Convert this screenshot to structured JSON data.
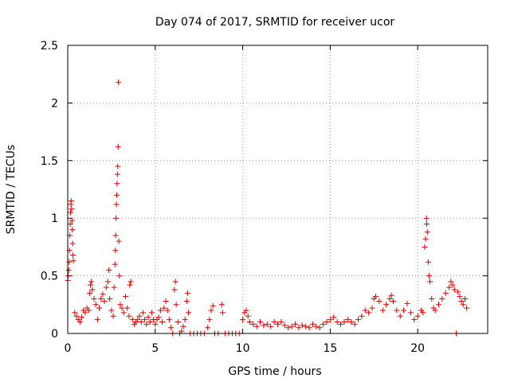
{
  "chart_data": {
    "type": "scatter",
    "title": "Day 074 of 2017, SRMTID for receiver ucor",
    "xlabel": "GPS time / hours",
    "ylabel": "SRMTID / TECUs",
    "xlim": [
      0,
      24
    ],
    "ylim": [
      0,
      2.5
    ],
    "xticks": [
      0,
      5,
      10,
      15,
      20
    ],
    "xtick_labels": [
      "0",
      "5",
      "10",
      "15",
      "20"
    ],
    "yticks": [
      0,
      0.5,
      1,
      1.5,
      2,
      2.5
    ],
    "ytick_labels": [
      "0",
      "0.5",
      "1",
      "1.5",
      "2",
      "2.5"
    ],
    "grid": true,
    "marker": "+",
    "color": "#e00000",
    "series": [
      {
        "name": "SRMTID",
        "points": [
          [
            0.0,
            0.46
          ],
          [
            0.03,
            0.5
          ],
          [
            0.05,
            0.55
          ],
          [
            0.08,
            0.62
          ],
          [
            0.1,
            0.72
          ],
          [
            0.12,
            0.85
          ],
          [
            0.14,
            0.95
          ],
          [
            0.16,
            1.05
          ],
          [
            0.18,
            1.12
          ],
          [
            0.2,
            1.15
          ],
          [
            0.22,
            1.08
          ],
          [
            0.24,
            0.98
          ],
          [
            0.26,
            0.9
          ],
          [
            0.28,
            0.78
          ],
          [
            0.3,
            0.68
          ],
          [
            0.32,
            0.63
          ],
          [
            0.4,
            0.18
          ],
          [
            0.5,
            0.15
          ],
          [
            0.6,
            0.12
          ],
          [
            0.7,
            0.1
          ],
          [
            0.8,
            0.14
          ],
          [
            0.9,
            0.2
          ],
          [
            1.0,
            0.18
          ],
          [
            1.1,
            0.22
          ],
          [
            1.2,
            0.2
          ],
          [
            1.25,
            0.35
          ],
          [
            1.3,
            0.42
          ],
          [
            1.35,
            0.45
          ],
          [
            1.4,
            0.38
          ],
          [
            1.5,
            0.3
          ],
          [
            1.6,
            0.25
          ],
          [
            1.7,
            0.12
          ],
          [
            1.8,
            0.22
          ],
          [
            1.9,
            0.3
          ],
          [
            2.0,
            0.34
          ],
          [
            2.1,
            0.28
          ],
          [
            2.2,
            0.4
          ],
          [
            2.3,
            0.45
          ],
          [
            2.35,
            0.55
          ],
          [
            2.4,
            0.3
          ],
          [
            2.5,
            0.2
          ],
          [
            2.6,
            0.15
          ],
          [
            2.65,
            0.4
          ],
          [
            2.7,
            0.6
          ],
          [
            2.72,
            0.72
          ],
          [
            2.74,
            0.85
          ],
          [
            2.76,
            1.0
          ],
          [
            2.78,
            1.12
          ],
          [
            2.8,
            1.2
          ],
          [
            2.82,
            1.3
          ],
          [
            2.84,
            1.38
          ],
          [
            2.86,
            1.45
          ],
          [
            2.88,
            1.62
          ],
          [
            2.9,
            2.18
          ],
          [
            2.92,
            0.8
          ],
          [
            2.95,
            0.5
          ],
          [
            3.0,
            0.25
          ],
          [
            3.1,
            0.22
          ],
          [
            3.2,
            0.18
          ],
          [
            3.3,
            0.32
          ],
          [
            3.4,
            0.22
          ],
          [
            3.5,
            0.15
          ],
          [
            3.55,
            0.42
          ],
          [
            3.6,
            0.45
          ],
          [
            3.7,
            0.12
          ],
          [
            3.8,
            0.08
          ],
          [
            3.9,
            0.1
          ],
          [
            4.0,
            0.12
          ],
          [
            4.1,
            0.15
          ],
          [
            4.2,
            0.1
          ],
          [
            4.3,
            0.18
          ],
          [
            4.4,
            0.12
          ],
          [
            4.5,
            0.08
          ],
          [
            4.6,
            0.14
          ],
          [
            4.7,
            0.1
          ],
          [
            4.8,
            0.18
          ],
          [
            4.9,
            0.12
          ],
          [
            5.0,
            0.08
          ],
          [
            5.1,
            0.12
          ],
          [
            5.2,
            0.14
          ],
          [
            5.3,
            0.2
          ],
          [
            5.4,
            0.1
          ],
          [
            5.5,
            0.22
          ],
          [
            5.6,
            0.28
          ],
          [
            5.7,
            0.2
          ],
          [
            5.8,
            0.12
          ],
          [
            5.9,
            0.05
          ],
          [
            6.0,
            0.0
          ],
          [
            6.1,
            0.38
          ],
          [
            6.15,
            0.45
          ],
          [
            6.2,
            0.25
          ],
          [
            6.3,
            0.1
          ],
          [
            6.4,
            0.0
          ],
          [
            6.5,
            0.02
          ],
          [
            6.6,
            0.06
          ],
          [
            6.7,
            0.12
          ],
          [
            6.8,
            0.28
          ],
          [
            6.85,
            0.35
          ],
          [
            6.9,
            0.18
          ],
          [
            7.0,
            0.0
          ],
          [
            7.2,
            0.0
          ],
          [
            7.4,
            0.0
          ],
          [
            7.6,
            0.0
          ],
          [
            7.8,
            0.0
          ],
          [
            8.0,
            0.05
          ],
          [
            8.1,
            0.12
          ],
          [
            8.2,
            0.2
          ],
          [
            8.3,
            0.24
          ],
          [
            8.4,
            0.0
          ],
          [
            8.6,
            0.0
          ],
          [
            8.8,
            0.25
          ],
          [
            8.85,
            0.18
          ],
          [
            9.0,
            0.0
          ],
          [
            9.2,
            0.0
          ],
          [
            9.4,
            0.0
          ],
          [
            9.6,
            0.0
          ],
          [
            9.8,
            0.0
          ],
          [
            10.0,
            0.12
          ],
          [
            10.1,
            0.18
          ],
          [
            10.2,
            0.2
          ],
          [
            10.3,
            0.15
          ],
          [
            10.4,
            0.1
          ],
          [
            10.6,
            0.08
          ],
          [
            10.8,
            0.06
          ],
          [
            11.0,
            0.1
          ],
          [
            11.2,
            0.07
          ],
          [
            11.4,
            0.08
          ],
          [
            11.6,
            0.06
          ],
          [
            11.8,
            0.1
          ],
          [
            12.0,
            0.08
          ],
          [
            12.2,
            0.1
          ],
          [
            12.4,
            0.07
          ],
          [
            12.6,
            0.05
          ],
          [
            12.8,
            0.06
          ],
          [
            13.0,
            0.08
          ],
          [
            13.2,
            0.05
          ],
          [
            13.4,
            0.07
          ],
          [
            13.6,
            0.06
          ],
          [
            13.8,
            0.05
          ],
          [
            14.0,
            0.08
          ],
          [
            14.2,
            0.06
          ],
          [
            14.4,
            0.05
          ],
          [
            14.6,
            0.08
          ],
          [
            14.8,
            0.1
          ],
          [
            15.0,
            0.12
          ],
          [
            15.2,
            0.14
          ],
          [
            15.4,
            0.1
          ],
          [
            15.6,
            0.08
          ],
          [
            15.8,
            0.1
          ],
          [
            16.0,
            0.12
          ],
          [
            16.2,
            0.1
          ],
          [
            16.4,
            0.08
          ],
          [
            16.6,
            0.12
          ],
          [
            16.8,
            0.15
          ],
          [
            17.0,
            0.2
          ],
          [
            17.2,
            0.18
          ],
          [
            17.4,
            0.22
          ],
          [
            17.5,
            0.3
          ],
          [
            17.6,
            0.32
          ],
          [
            17.8,
            0.28
          ],
          [
            18.0,
            0.2
          ],
          [
            18.2,
            0.25
          ],
          [
            18.4,
            0.3
          ],
          [
            18.5,
            0.33
          ],
          [
            18.6,
            0.28
          ],
          [
            18.8,
            0.2
          ],
          [
            19.0,
            0.15
          ],
          [
            19.2,
            0.2
          ],
          [
            19.4,
            0.26
          ],
          [
            19.6,
            0.18
          ],
          [
            19.8,
            0.12
          ],
          [
            20.0,
            0.15
          ],
          [
            20.2,
            0.2
          ],
          [
            20.3,
            0.18
          ],
          [
            20.4,
            0.75
          ],
          [
            20.45,
            0.82
          ],
          [
            20.5,
            1.0
          ],
          [
            20.52,
            0.95
          ],
          [
            20.55,
            0.88
          ],
          [
            20.6,
            0.62
          ],
          [
            20.65,
            0.5
          ],
          [
            20.7,
            0.45
          ],
          [
            20.8,
            0.3
          ],
          [
            20.9,
            0.22
          ],
          [
            21.0,
            0.2
          ],
          [
            21.2,
            0.25
          ],
          [
            21.4,
            0.3
          ],
          [
            21.6,
            0.35
          ],
          [
            21.8,
            0.4
          ],
          [
            21.9,
            0.45
          ],
          [
            22.0,
            0.42
          ],
          [
            22.1,
            0.38
          ],
          [
            22.2,
            0.0
          ],
          [
            22.3,
            0.36
          ],
          [
            22.4,
            0.32
          ],
          [
            22.5,
            0.28
          ],
          [
            22.6,
            0.25
          ],
          [
            22.7,
            0.3
          ],
          [
            22.8,
            0.22
          ]
        ]
      }
    ]
  }
}
